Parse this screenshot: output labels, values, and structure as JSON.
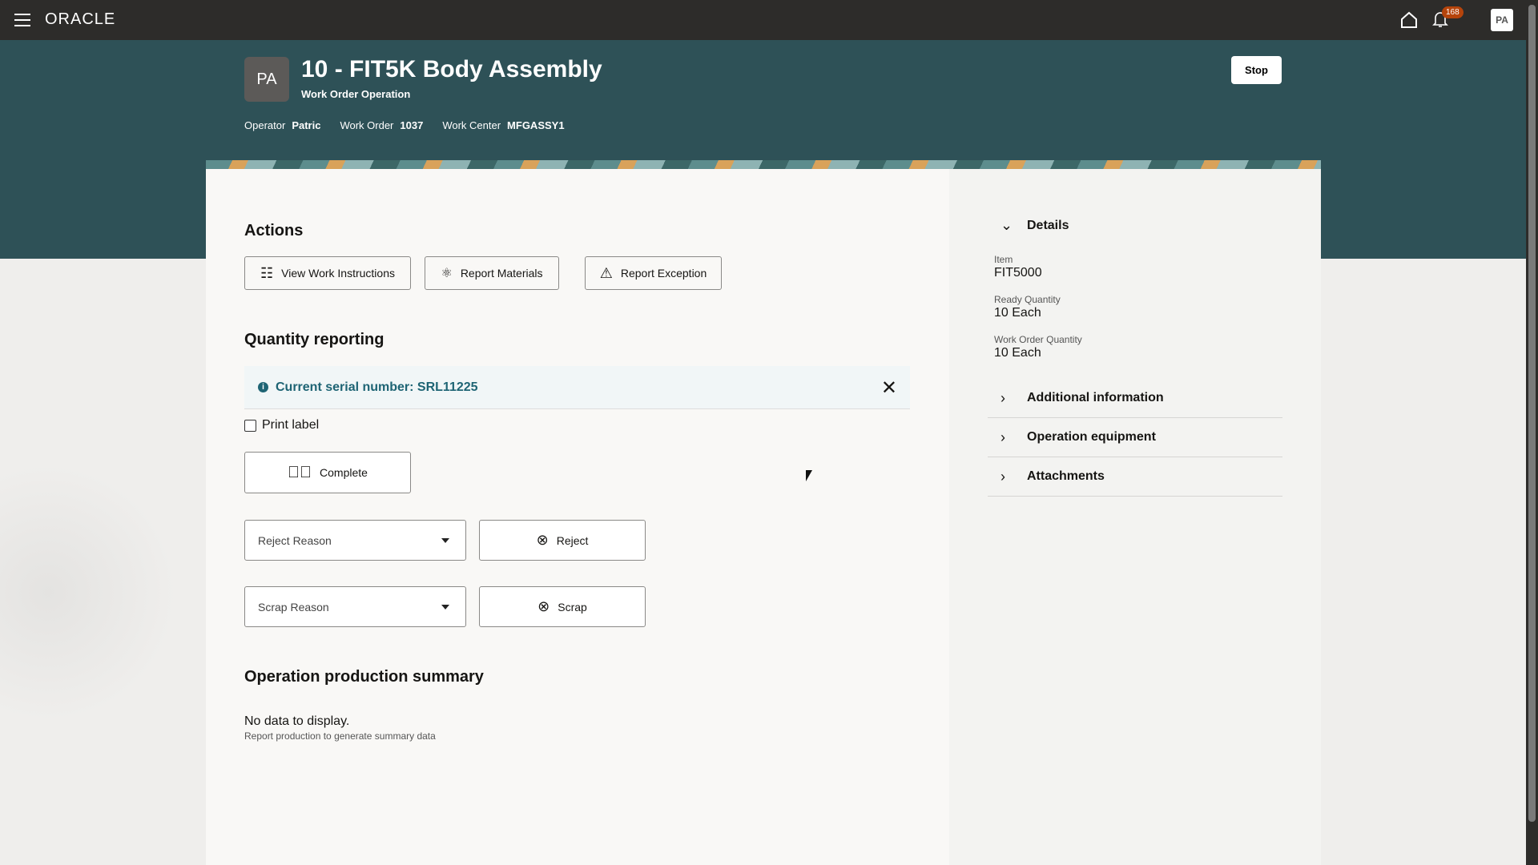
{
  "topbar": {
    "brand": "ORACLE",
    "notification_count": "168",
    "user_initials": "PA"
  },
  "header": {
    "avatar_initials": "PA",
    "title": "10 - FIT5K Body Assembly",
    "subtitle": "Work Order Operation",
    "operator_label": "Operator",
    "operator": "Patric",
    "work_order_label": "Work Order",
    "work_order": "1037",
    "work_center_label": "Work Center",
    "work_center": "MFGASSY1",
    "stop_label": "Stop"
  },
  "actions": {
    "heading": "Actions",
    "view_work_instructions": "View Work Instructions",
    "report_materials": "Report Materials",
    "report_exception": "Report Exception"
  },
  "quantity": {
    "heading": "Quantity reporting",
    "banner": "Current serial number: SRL11225",
    "print_label": "Print label",
    "print_label_checked": false,
    "complete": "Complete",
    "reject_reason_placeholder": "Reject Reason",
    "reject": "Reject",
    "scrap_reason_placeholder": "Scrap Reason",
    "scrap": "Scrap"
  },
  "summary": {
    "heading": "Operation production summary",
    "empty": "No data to display.",
    "empty_hint": "Report production to generate summary data"
  },
  "details": {
    "heading": "Details",
    "item_label": "Item",
    "item": "FIT5000",
    "ready_label": "Ready Quantity",
    "ready": "10 Each",
    "wo_qty_label": "Work Order Quantity",
    "wo_qty": "10 Each",
    "sections": [
      {
        "label": "Additional information"
      },
      {
        "label": "Operation equipment"
      },
      {
        "label": "Attachments"
      }
    ]
  },
  "colors": {
    "topbar": "#2d2c2a",
    "header": "#2e5157",
    "info": "#1e6474",
    "badge": "#b5440b"
  }
}
